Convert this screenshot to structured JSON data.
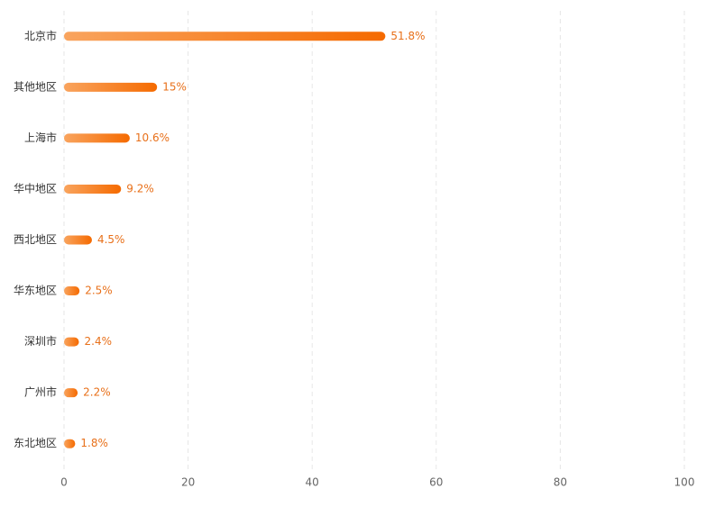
{
  "chart_data": {
    "type": "bar",
    "orientation": "horizontal",
    "categories": [
      "北京市",
      "其他地区",
      "上海市",
      "华中地区",
      "西北地区",
      "华东地区",
      "深圳市",
      "广州市",
      "东北地区"
    ],
    "values": [
      51.8,
      15,
      10.6,
      9.2,
      4.5,
      2.5,
      2.4,
      2.2,
      1.8
    ],
    "value_labels": [
      "51.8%",
      "15%",
      "10.6%",
      "9.2%",
      "4.5%",
      "2.5%",
      "2.4%",
      "2.2%",
      "1.8%"
    ],
    "gradient": [
      "#f9a45e",
      "#f56a00"
    ],
    "xlim": [
      0,
      100
    ],
    "xticks": [
      0,
      20,
      40,
      60,
      80,
      100
    ],
    "grid": true
  }
}
